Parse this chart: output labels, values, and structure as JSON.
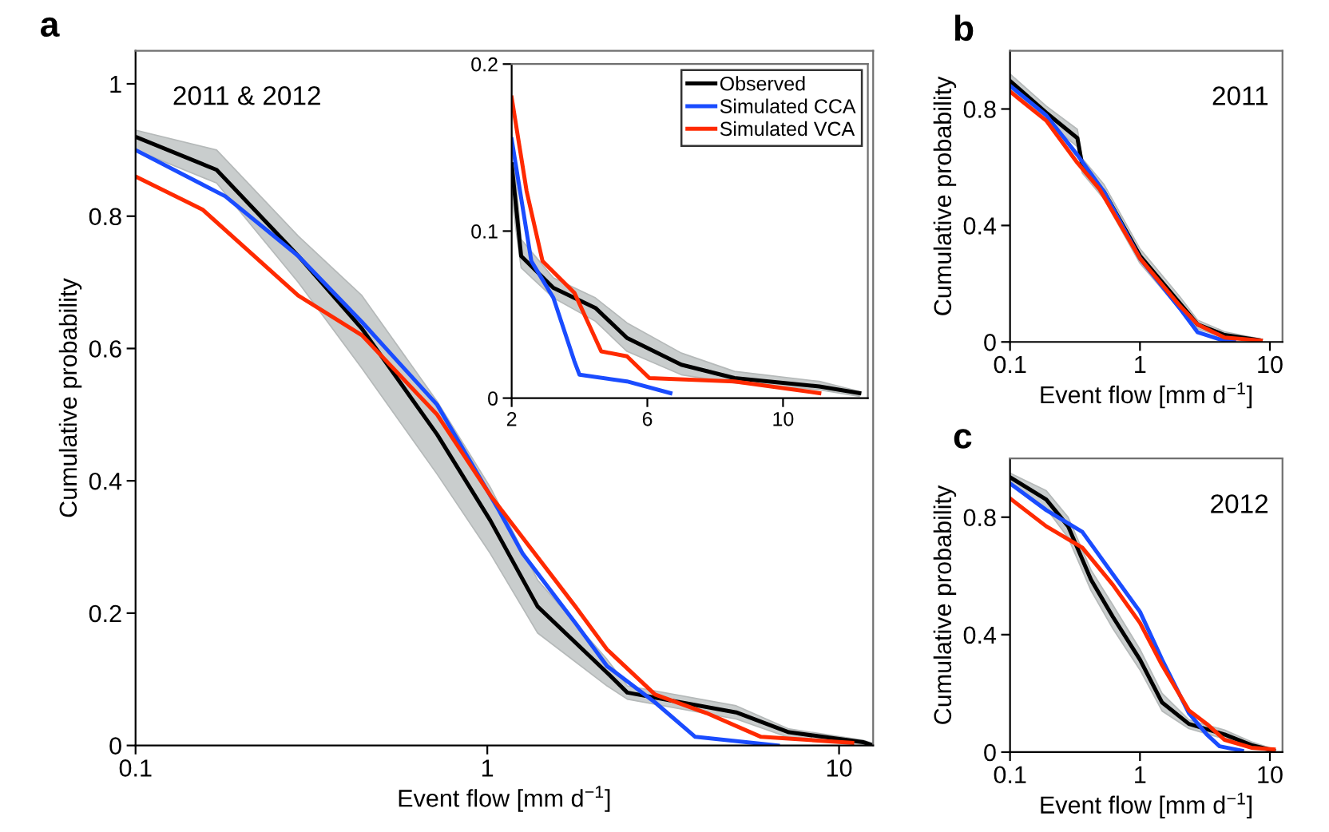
{
  "chart_data": [
    {
      "type": "line",
      "annotations": [
        "a"
      ],
      "title": "2011 & 2012",
      "xlabel": "Event flow [mm d$^{−1}$]",
      "ylabel": "Cumulative probability",
      "log": "x",
      "xlim": [
        0.1,
        12.5
      ],
      "xticks": [
        0.1,
        1,
        10
      ],
      "ylim": [
        0,
        1.05
      ],
      "yticks": [
        0,
        0.2,
        0.4,
        0.6,
        0.8,
        1
      ],
      "series": [
        {
          "color": "#000000",
          "x": [
            0.1,
            0.17,
            0.29,
            0.44,
            0.72,
            1.02,
            1.39,
            2.19,
            2.5,
            5.1,
            7.2,
            11.7,
            12.5
          ],
          "values": [
            0.92,
            0.87,
            0.74,
            0.63,
            0.47,
            0.34,
            0.21,
            0.11,
            0.08,
            0.05,
            0.02,
            0.005,
            0
          ],
          "lower": [
            0.9,
            0.85,
            0.7,
            0.57,
            0.41,
            0.29,
            0.17,
            0.09,
            0.07,
            0.04,
            0.012,
            0.002,
            0
          ],
          "upper": [
            0.93,
            0.9,
            0.77,
            0.68,
            0.52,
            0.39,
            0.25,
            0.13,
            0.09,
            0.06,
            0.025,
            0.008,
            0.003
          ]
        },
        {
          "color": "#1a4cff",
          "x": [
            0.1,
            0.18,
            0.29,
            0.44,
            0.72,
            1.08,
            1.26,
            1.78,
            2.19,
            3.0,
            3.9,
            6.7
          ],
          "values": [
            0.9,
            0.83,
            0.74,
            0.64,
            0.515,
            0.355,
            0.29,
            0.185,
            0.12,
            0.065,
            0.013,
            0
          ]
        },
        {
          "color": "#ff2a00",
          "x": [
            0.1,
            0.155,
            0.29,
            0.44,
            0.72,
            1.02,
            1.78,
            2.19,
            3.0,
            4.2,
            6.0,
            10.9
          ],
          "values": [
            0.86,
            0.81,
            0.68,
            0.62,
            0.5,
            0.378,
            0.21,
            0.145,
            0.077,
            0.049,
            0.013,
            0.004
          ]
        }
      ]
    },
    {
      "type": "line",
      "legend": "top right",
      "xlim": [
        2,
        12.5
      ],
      "xticks": [
        2,
        6,
        10
      ],
      "ylim": [
        0,
        0.2
      ],
      "yticks": [
        0,
        0.1,
        0.2
      ],
      "series": [
        {
          "name": "Observed",
          "color": "#000000",
          "x": [
            2,
            2.28,
            3.23,
            4.47,
            5.4,
            7.0,
            8.57,
            11.07,
            12.25
          ],
          "values": [
            0.14,
            0.085,
            0.066,
            0.054,
            0.036,
            0.02,
            0.012,
            0.007,
            0.003
          ],
          "lower": [
            0.12,
            0.078,
            0.06,
            0.046,
            0.028,
            0.014,
            0.009,
            0.005,
            0.001
          ],
          "upper": [
            0.16,
            0.095,
            0.072,
            0.06,
            0.045,
            0.027,
            0.016,
            0.01,
            0.004
          ]
        },
        {
          "name": "Simulated CCA",
          "color": "#1a4cff",
          "x": [
            2,
            2.58,
            3.23,
            3.85,
            4.0,
            5.4,
            6.68
          ],
          "values": [
            0.155,
            0.082,
            0.06,
            0.022,
            0.014,
            0.01,
            0.003
          ]
        },
        {
          "name": "Simulated VCA",
          "color": "#ff2a00",
          "x": [
            2,
            2.44,
            2.91,
            3.85,
            4.64,
            5.4,
            6.06,
            8.57,
            11.07
          ],
          "values": [
            0.18,
            0.124,
            0.082,
            0.063,
            0.028,
            0.025,
            0.012,
            0.01,
            0.003
          ]
        }
      ]
    },
    {
      "type": "line",
      "annotations": [
        "b"
      ],
      "title": "2011",
      "xlabel": "Event flow [mm d$^{−1}$]",
      "ylabel": "Cumulative probability",
      "log": "x",
      "xlim": [
        0.1,
        12.5
      ],
      "xticks": [
        0.1,
        1,
        10
      ],
      "ylim": [
        0,
        1
      ],
      "yticks": [
        0,
        0.4,
        0.8
      ],
      "series": [
        {
          "color": "#000000",
          "x": [
            0.1,
            0.19,
            0.33,
            0.36,
            0.53,
            1.0,
            2.03,
            2.78,
            4.48,
            8.5
          ],
          "values": [
            0.896,
            0.787,
            0.7,
            0.605,
            0.515,
            0.296,
            0.133,
            0.06,
            0.024,
            0.005
          ],
          "lower": [
            0.87,
            0.76,
            0.67,
            0.58,
            0.49,
            0.27,
            0.11,
            0.045,
            0.015,
            0.002
          ],
          "upper": [
            0.92,
            0.81,
            0.73,
            0.63,
            0.54,
            0.32,
            0.155,
            0.075,
            0.035,
            0.01
          ]
        },
        {
          "color": "#1a4cff",
          "x": [
            0.1,
            0.19,
            0.33,
            0.53,
            1.0,
            2.03,
            2.78,
            4.1,
            5.3
          ],
          "values": [
            0.88,
            0.778,
            0.642,
            0.515,
            0.287,
            0.115,
            0.033,
            0.009,
            0.002
          ]
        },
        {
          "color": "#ff2a00",
          "x": [
            0.1,
            0.19,
            0.33,
            0.49,
            1.0,
            2.03,
            2.78,
            4.48,
            8.5
          ],
          "values": [
            0.86,
            0.76,
            0.615,
            0.524,
            0.287,
            0.124,
            0.06,
            0.015,
            0.005
          ]
        }
      ]
    },
    {
      "type": "line",
      "annotations": [
        "c"
      ],
      "title": "2012",
      "xlabel": "Event flow [mm d$^{−1}$]",
      "ylabel": "Cumulative probability",
      "log": "x",
      "xlim": [
        0.1,
        12.5
      ],
      "xticks": [
        0.1,
        1,
        10
      ],
      "ylim": [
        0,
        1
      ],
      "yticks": [
        0,
        0.4,
        0.8
      ],
      "series": [
        {
          "color": "#000000",
          "x": [
            0.1,
            0.19,
            0.28,
            0.42,
            0.62,
            1.0,
            1.48,
            2.38,
            4.48,
            7.2,
            10.7
          ],
          "values": [
            0.936,
            0.86,
            0.769,
            0.587,
            0.46,
            0.315,
            0.169,
            0.096,
            0.06,
            0.024,
            0.005
          ],
          "lower": [
            0.91,
            0.83,
            0.73,
            0.55,
            0.42,
            0.28,
            0.14,
            0.08,
            0.045,
            0.015,
            0.002
          ],
          "upper": [
            0.95,
            0.89,
            0.8,
            0.62,
            0.5,
            0.35,
            0.2,
            0.11,
            0.075,
            0.035,
            0.01
          ]
        },
        {
          "color": "#1a4cff",
          "x": [
            0.1,
            0.19,
            0.36,
            0.62,
            1.0,
            1.48,
            2.38,
            3.27,
            4.1,
            6.1
          ],
          "values": [
            0.915,
            0.824,
            0.75,
            0.605,
            0.478,
            0.315,
            0.133,
            0.06,
            0.02,
            0.005
          ]
        },
        {
          "color": "#ff2a00",
          "x": [
            0.1,
            0.19,
            0.36,
            0.62,
            1.0,
            1.48,
            2.38,
            3.27,
            4.48,
            7.2,
            10.7
          ],
          "values": [
            0.864,
            0.769,
            0.696,
            0.569,
            0.44,
            0.296,
            0.142,
            0.096,
            0.042,
            0.015,
            0.009
          ]
        }
      ]
    }
  ]
}
